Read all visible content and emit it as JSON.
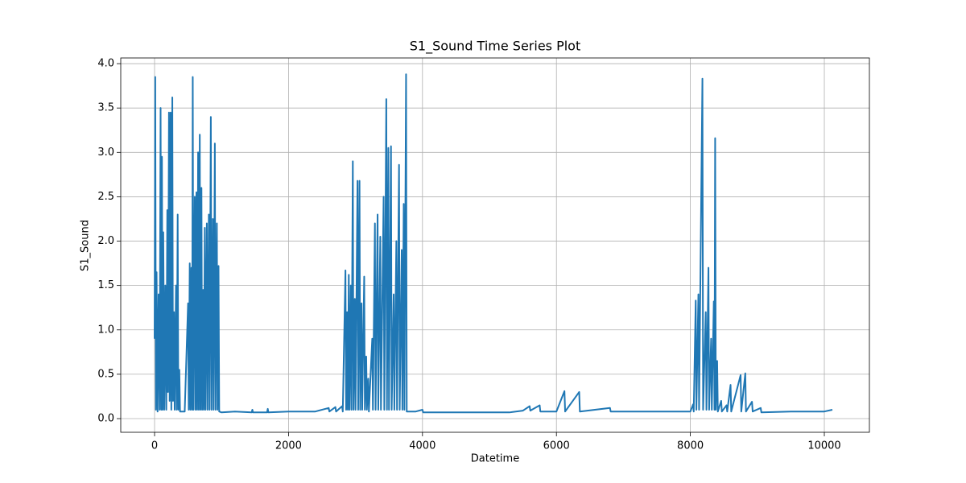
{
  "chart_data": {
    "type": "line",
    "title": "S1_Sound Time Series Plot",
    "x_label": "Datetime",
    "y_label": "S1_Sound",
    "color": "#1f77b4",
    "grid": true,
    "xlim": [
      -505,
      10673
    ],
    "ylim": [
      -0.154,
      4.064
    ],
    "xticks": [
      0,
      2000,
      4000,
      6000,
      8000,
      10000
    ],
    "yticks": [
      {
        "value": 0,
        "label": "0.0"
      },
      0.5,
      {
        "value": 1,
        "label": "1.0"
      },
      1.5,
      {
        "value": 2,
        "label": "2.0"
      },
      2.5,
      {
        "value": 3,
        "label": "3.0"
      },
      3.5,
      {
        "value": 4,
        "label": "4.0"
      }
    ],
    "x": [
      0,
      10,
      20,
      30,
      45,
      60,
      75,
      90,
      100,
      110,
      120,
      130,
      145,
      160,
      175,
      190,
      200,
      215,
      225,
      240,
      250,
      265,
      275,
      290,
      300,
      320,
      330,
      345,
      355,
      370,
      380,
      450,
      500,
      510,
      525,
      535,
      550,
      560,
      570,
      580,
      600,
      610,
      625,
      635,
      650,
      660,
      675,
      685,
      700,
      710,
      725,
      735,
      750,
      760,
      780,
      790,
      810,
      820,
      840,
      850,
      870,
      880,
      900,
      910,
      930,
      940,
      955,
      965,
      1000,
      1200,
      1450,
      1460,
      1470,
      1680,
      1690,
      1700,
      2000,
      2400,
      2600,
      2610,
      2700,
      2710,
      2800,
      2810,
      2850,
      2860,
      2875,
      2885,
      2900,
      2910,
      2930,
      2940,
      2960,
      2970,
      2990,
      3000,
      3030,
      3040,
      3060,
      3070,
      3090,
      3100,
      3130,
      3140,
      3160,
      3170,
      3190,
      3200,
      3250,
      3260,
      3290,
      3300,
      3330,
      3340,
      3370,
      3380,
      3420,
      3430,
      3460,
      3470,
      3490,
      3500,
      3530,
      3540,
      3570,
      3580,
      3610,
      3620,
      3650,
      3660,
      3690,
      3700,
      3720,
      3730,
      3755,
      3765,
      3900,
      4000,
      4010,
      4400,
      5000,
      5300,
      5500,
      5600,
      5610,
      5750,
      5760,
      6000,
      6120,
      6130,
      6340,
      6350,
      6800,
      6810,
      7400,
      8000,
      8040,
      8050,
      8080,
      8090,
      8120,
      8130,
      8180,
      8190,
      8230,
      8240,
      8270,
      8280,
      8310,
      8320,
      8350,
      8360,
      8370,
      8380,
      8400,
      8410,
      8460,
      8470,
      8540,
      8550,
      8600,
      8610,
      8750,
      8760,
      8820,
      8830,
      8920,
      8930,
      9050,
      9060,
      9500,
      10000,
      10120
    ],
    "values": [
      0.9,
      3.85,
      0.1,
      1.65,
      0.08,
      1.4,
      0.1,
      3.5,
      0.1,
      2.95,
      0.1,
      2.1,
      0.1,
      1.5,
      0.1,
      2.35,
      0.3,
      3.45,
      0.2,
      3.45,
      0.1,
      3.62,
      0.2,
      1.2,
      0.1,
      1.5,
      0.1,
      2.3,
      0.1,
      0.55,
      0.08,
      0.08,
      1.3,
      0.1,
      1.75,
      0.1,
      1.7,
      0.1,
      3.85,
      0.1,
      2.5,
      0.1,
      2.55,
      0.1,
      3.0,
      0.1,
      3.2,
      0.1,
      2.6,
      0.1,
      1.45,
      0.1,
      2.15,
      0.1,
      2.2,
      0.1,
      2.3,
      0.1,
      3.4,
      0.1,
      2.25,
      0.1,
      3.1,
      0.1,
      2.2,
      0.1,
      1.72,
      0.08,
      0.07,
      0.08,
      0.07,
      0.1,
      0.07,
      0.07,
      0.11,
      0.07,
      0.08,
      0.08,
      0.12,
      0.08,
      0.13,
      0.08,
      0.14,
      0.08,
      1.67,
      0.1,
      1.2,
      0.1,
      1.62,
      0.1,
      1.5,
      0.1,
      2.9,
      0.1,
      1.35,
      0.1,
      2.68,
      0.1,
      2.68,
      0.1,
      1.3,
      0.1,
      1.6,
      0.1,
      0.7,
      0.1,
      0.45,
      0.08,
      0.9,
      0.1,
      2.2,
      0.1,
      2.3,
      0.1,
      2.05,
      0.1,
      2.5,
      0.1,
      3.6,
      0.1,
      3.05,
      0.1,
      3.07,
      0.1,
      1.4,
      0.1,
      2.0,
      0.1,
      2.86,
      0.1,
      1.9,
      0.1,
      2.42,
      0.1,
      3.88,
      0.08,
      0.08,
      0.1,
      0.07,
      0.07,
      0.07,
      0.07,
      0.09,
      0.14,
      0.09,
      0.15,
      0.08,
      0.08,
      0.31,
      0.08,
      0.3,
      0.08,
      0.12,
      0.08,
      0.08,
      0.08,
      0.16,
      0.08,
      1.33,
      0.1,
      1.4,
      0.1,
      3.83,
      0.1,
      1.2,
      0.1,
      1.7,
      0.1,
      0.9,
      0.1,
      1.32,
      0.1,
      3.16,
      0.1,
      0.65,
      0.08,
      0.2,
      0.08,
      0.15,
      0.08,
      0.38,
      0.08,
      0.49,
      0.08,
      0.51,
      0.08,
      0.19,
      0.08,
      0.12,
      0.07,
      0.08,
      0.08,
      0.1
    ]
  }
}
